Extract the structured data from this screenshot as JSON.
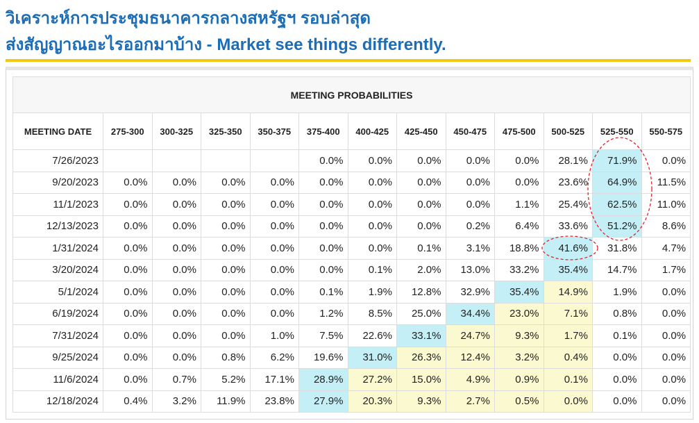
{
  "header": {
    "title_line1": "วิเคราะห์การประชุมธนาคารกลางสหรัฐฯ รอบล่าสุด",
    "title_line2": "ส่งสัญญาณอะไรออกมาบ้าง - Market see things differently."
  },
  "table": {
    "title": "MEETING PROBABILITIES",
    "columns": [
      "MEETING DATE",
      "275-300",
      "300-325",
      "325-350",
      "350-375",
      "375-400",
      "400-425",
      "425-450",
      "450-475",
      "475-500",
      "500-525",
      "525-550",
      "550-575"
    ],
    "max_color": "#c4eff7",
    "range_color": "#fbf9cf",
    "current_range": "500-525",
    "rows": [
      [
        "7/26/2023",
        null,
        null,
        null,
        null,
        "0.0%",
        "0.0%",
        "0.0%",
        "0.0%",
        "0.0%",
        "28.1%",
        "71.9%",
        "0.0%"
      ],
      [
        "9/20/2023",
        "0.0%",
        "0.0%",
        "0.0%",
        "0.0%",
        "0.0%",
        "0.0%",
        "0.0%",
        "0.0%",
        "0.0%",
        "23.6%",
        "64.9%",
        "11.5%"
      ],
      [
        "11/1/2023",
        "0.0%",
        "0.0%",
        "0.0%",
        "0.0%",
        "0.0%",
        "0.0%",
        "0.0%",
        "0.0%",
        "1.1%",
        "25.4%",
        "62.5%",
        "11.0%"
      ],
      [
        "12/13/2023",
        "0.0%",
        "0.0%",
        "0.0%",
        "0.0%",
        "0.0%",
        "0.0%",
        "0.0%",
        "0.2%",
        "6.4%",
        "33.6%",
        "51.2%",
        "8.6%"
      ],
      [
        "1/31/2024",
        "0.0%",
        "0.0%",
        "0.0%",
        "0.0%",
        "0.0%",
        "0.0%",
        "0.1%",
        "3.1%",
        "18.8%",
        "41.6%",
        "31.8%",
        "4.7%"
      ],
      [
        "3/20/2024",
        "0.0%",
        "0.0%",
        "0.0%",
        "0.0%",
        "0.0%",
        "0.1%",
        "2.0%",
        "13.0%",
        "33.2%",
        "35.4%",
        "14.7%",
        "1.7%"
      ],
      [
        "5/1/2024",
        "0.0%",
        "0.0%",
        "0.0%",
        "0.0%",
        "0.1%",
        "1.9%",
        "12.8%",
        "32.9%",
        "35.4%",
        "14.9%",
        "1.9%",
        "0.0%"
      ],
      [
        "6/19/2024",
        "0.0%",
        "0.0%",
        "0.0%",
        "0.0%",
        "1.2%",
        "8.5%",
        "25.0%",
        "34.4%",
        "23.0%",
        "7.1%",
        "0.8%",
        "0.0%"
      ],
      [
        "7/31/2024",
        "0.0%",
        "0.0%",
        "0.0%",
        "1.0%",
        "7.5%",
        "22.6%",
        "33.1%",
        "24.7%",
        "9.3%",
        "1.7%",
        "0.1%",
        "0.0%"
      ],
      [
        "9/25/2024",
        "0.0%",
        "0.0%",
        "0.8%",
        "6.2%",
        "19.6%",
        "31.0%",
        "26.3%",
        "12.4%",
        "3.2%",
        "0.4%",
        "0.0%",
        "0.0%"
      ],
      [
        "11/6/2024",
        "0.0%",
        "0.7%",
        "5.2%",
        "17.1%",
        "28.9%",
        "27.2%",
        "15.0%",
        "4.9%",
        "0.9%",
        "0.1%",
        "0.0%",
        "0.0%"
      ],
      [
        "12/18/2024",
        "0.4%",
        "3.2%",
        "11.9%",
        "23.8%",
        "27.9%",
        "20.3%",
        "9.3%",
        "2.7%",
        "0.5%",
        "0.0%",
        "0.0%",
        "0.0%"
      ]
    ]
  }
}
